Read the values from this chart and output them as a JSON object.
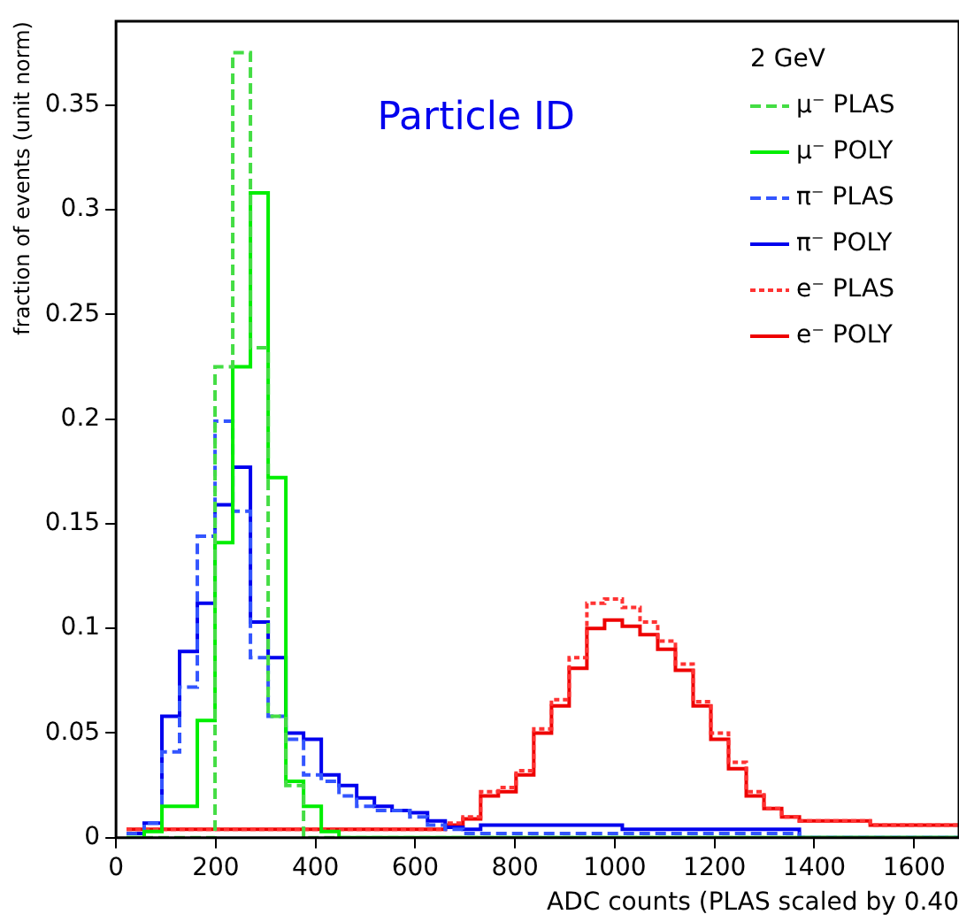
{
  "chart_data": {
    "type": "histogram",
    "xlabel": "ADC counts (PLAS scaled by 0.40",
    "ylabel": "fraction of events (unit norm)",
    "legend_title": "2 GeV",
    "legend": "top right",
    "grid": false,
    "annotations": [
      "Particle ID"
    ],
    "xlim": [
      0,
      1690
    ],
    "xticks": [
      0,
      200,
      400,
      600,
      800,
      1000,
      1200,
      1400,
      1600
    ],
    "ylim": [
      0,
      0.39
    ],
    "yticks": [
      0,
      0.05,
      0.1,
      0.15,
      0.2,
      0.25,
      0.3,
      0.35
    ],
    "bins": [
      21,
      56.5,
      92,
      127.5,
      163,
      198.5,
      234,
      269.5,
      305,
      340.5,
      376,
      411.5,
      447,
      482.5,
      518,
      553.5,
      589,
      624.5,
      660,
      695.5,
      731,
      766.5,
      802,
      837.5,
      873,
      908.5,
      944,
      979.5,
      1015,
      1050.5,
      1086,
      1121.5,
      1157,
      1192.5,
      1228,
      1263.5,
      1299,
      1334.5,
      1370,
      1405.5,
      1441,
      1476.5,
      1512,
      1547.5,
      1583,
      1618.5,
      1654,
      1689.5
    ],
    "series": [
      {
        "name": "μ⁻ PLAS",
        "color": "#44dd44",
        "line_style": "dashed",
        "values": [
          0,
          0,
          0,
          0,
          0,
          0.225,
          0.375,
          0.234,
          0.058,
          0.025,
          0,
          0,
          0,
          0,
          0,
          0,
          0,
          0,
          0,
          0,
          0,
          0,
          0,
          0,
          0,
          0,
          0,
          0,
          0,
          0,
          0,
          0,
          0,
          0,
          0,
          0,
          0,
          0,
          0,
          0,
          0,
          0,
          0,
          0,
          0,
          0,
          0
        ]
      },
      {
        "name": "μ⁻ POLY",
        "color": "#00ee00",
        "line_style": "solid",
        "values": [
          0,
          0.003,
          0.015,
          0.015,
          0.056,
          0.141,
          0.225,
          0.308,
          0.172,
          0.027,
          0.015,
          0.003,
          0,
          0,
          0,
          0,
          0,
          0,
          0,
          0,
          0,
          0,
          0,
          0,
          0,
          0,
          0,
          0,
          0,
          0,
          0,
          0,
          0,
          0,
          0,
          0,
          0,
          0,
          0,
          0,
          0,
          0,
          0,
          0,
          0,
          0,
          0
        ]
      },
      {
        "name": "π⁻ PLAS",
        "color": "#3355ff",
        "line_style": "dashed",
        "values": [
          0.002,
          0.007,
          0.041,
          0.072,
          0.144,
          0.199,
          0.156,
          0.086,
          0.058,
          0.047,
          0.03,
          0.027,
          0.02,
          0.015,
          0.013,
          0.013,
          0.01,
          0.006,
          0.004,
          0.002,
          0.002,
          0.002,
          0.002,
          0.002,
          0.002,
          0.002,
          0.002,
          0.002,
          0.002,
          0.002,
          0.002,
          0.002,
          0.002,
          0.002,
          0.002,
          0.002,
          0.002,
          0.002,
          0,
          0,
          0,
          0,
          0,
          0,
          0,
          0,
          0
        ]
      },
      {
        "name": "π⁻ POLY",
        "color": "#0000ee",
        "line_style": "solid",
        "values": [
          0.002,
          0.007,
          0.058,
          0.089,
          0.112,
          0.159,
          0.177,
          0.103,
          0.086,
          0.05,
          0.047,
          0.03,
          0.025,
          0.019,
          0.015,
          0.013,
          0.012,
          0.008,
          0.005,
          0.004,
          0.006,
          0.006,
          0.006,
          0.006,
          0.006,
          0.006,
          0.006,
          0.006,
          0.004,
          0.004,
          0.004,
          0.004,
          0.004,
          0.004,
          0.004,
          0.004,
          0.004,
          0.004,
          0,
          0,
          0,
          0,
          0,
          0,
          0,
          0,
          0
        ]
      },
      {
        "name": "e⁻ PLAS",
        "color": "#ff3333",
        "line_style": "dotted",
        "values": [
          0.004,
          0.004,
          0.004,
          0.004,
          0.004,
          0.004,
          0.004,
          0.004,
          0.004,
          0.004,
          0.004,
          0.004,
          0.004,
          0.004,
          0.004,
          0.004,
          0.004,
          0.004,
          0.007,
          0.01,
          0.022,
          0.024,
          0.032,
          0.052,
          0.066,
          0.086,
          0.112,
          0.114,
          0.11,
          0.103,
          0.094,
          0.083,
          0.065,
          0.05,
          0.036,
          0.022,
          0.014,
          0.01,
          0.008,
          0.008,
          0.008,
          0.008,
          0.006,
          0.006,
          0.006,
          0.006,
          0.006
        ]
      },
      {
        "name": "e⁻ POLY",
        "color": "#ee0000",
        "line_style": "solid",
        "values": [
          0.004,
          0.004,
          0.004,
          0.004,
          0.004,
          0.004,
          0.004,
          0.004,
          0.004,
          0.004,
          0.004,
          0.004,
          0.004,
          0.004,
          0.004,
          0.004,
          0.004,
          0.004,
          0.006,
          0.009,
          0.02,
          0.022,
          0.03,
          0.05,
          0.063,
          0.081,
          0.1,
          0.104,
          0.101,
          0.097,
          0.09,
          0.08,
          0.063,
          0.047,
          0.033,
          0.02,
          0.014,
          0.01,
          0.008,
          0.008,
          0.008,
          0.008,
          0.006,
          0.006,
          0.006,
          0.006,
          0.006
        ]
      }
    ]
  }
}
